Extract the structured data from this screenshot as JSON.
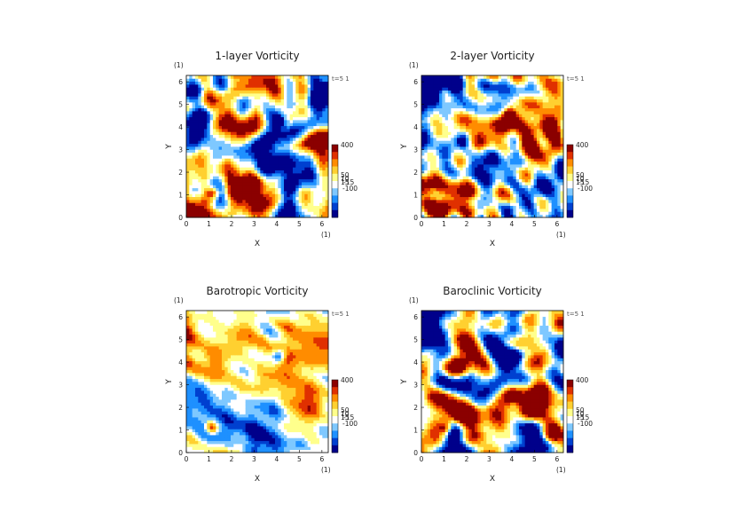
{
  "chart_data": [
    {
      "type": "heatmap",
      "title": "1-layer Vorticity",
      "xlabel": "X",
      "ylabel": "Y",
      "x_unit": "(1)",
      "y_unit": "(1)",
      "time_label": "t=5 1",
      "xlim": [
        0,
        6.28
      ],
      "ylim": [
        0,
        6.28
      ],
      "xticks": [
        "0",
        "1",
        "2",
        "3",
        "4",
        "5",
        "6"
      ],
      "yticks": [
        "0",
        "1",
        "2",
        "3",
        "4",
        "5",
        "6"
      ],
      "colorbar_labels": [
        "400",
        "50",
        "10",
        "15",
        "-15",
        "-100"
      ],
      "features": [
        {
          "kind": "vortex",
          "x": 1.2,
          "y": 1.1,
          "sign": "positive"
        },
        {
          "kind": "vortex",
          "x": 4.1,
          "y": 4.3,
          "sign": "negative"
        }
      ]
    },
    {
      "type": "heatmap",
      "title": "2-layer Vorticity",
      "xlabel": "X",
      "ylabel": "Y",
      "x_unit": "(1)",
      "y_unit": "(1)",
      "time_label": "t=5 1",
      "xlim": [
        0,
        6.28
      ],
      "ylim": [
        0,
        6.28
      ],
      "xticks": [
        "0",
        "1",
        "2",
        "3",
        "4",
        "5",
        "6"
      ],
      "yticks": [
        "0",
        "1",
        "2",
        "3",
        "4",
        "5",
        "6"
      ],
      "colorbar_labels": [
        "400",
        "50",
        "10",
        "15",
        "-15",
        "-100"
      ],
      "features": [
        {
          "kind": "vortex",
          "x": 3.9,
          "y": 4.6,
          "sign": "positive"
        },
        {
          "kind": "vortex",
          "x": 1.8,
          "y": 3.4,
          "sign": "negative"
        }
      ]
    },
    {
      "type": "heatmap",
      "title": "Barotropic Vorticity",
      "xlabel": "X",
      "ylabel": "Y",
      "x_unit": "(1)",
      "y_unit": "(1)",
      "time_label": "t=5 1",
      "xlim": [
        0,
        6.28
      ],
      "ylim": [
        0,
        6.28
      ],
      "xticks": [
        "0",
        "1",
        "2",
        "3",
        "4",
        "5",
        "6"
      ],
      "yticks": [
        "0",
        "1",
        "2",
        "3",
        "4",
        "5",
        "6"
      ],
      "colorbar_labels": [
        "400",
        "50",
        "10",
        "15",
        "-15",
        "-100"
      ],
      "features": [
        {
          "kind": "vortex",
          "x": 1.1,
          "y": 1.1,
          "sign": "positive"
        },
        {
          "kind": "vortex",
          "x": 4.1,
          "y": 4.3,
          "sign": "negative"
        }
      ]
    },
    {
      "type": "heatmap",
      "title": "Baroclinic Vorticity",
      "xlabel": "X",
      "ylabel": "Y",
      "x_unit": "(1)",
      "y_unit": "(1)",
      "time_label": "t=5 1",
      "xlim": [
        0,
        6.28
      ],
      "ylim": [
        0,
        6.28
      ],
      "xticks": [
        "0",
        "1",
        "2",
        "3",
        "4",
        "5",
        "6"
      ],
      "yticks": [
        "0",
        "1",
        "2",
        "3",
        "4",
        "5",
        "6"
      ],
      "colorbar_labels": [
        "400",
        "50",
        "10",
        "15",
        "-15",
        "-100"
      ],
      "features": [
        {
          "kind": "vortex",
          "x": 1.1,
          "y": 1.1,
          "sign": "positive"
        },
        {
          "kind": "vortex",
          "x": 4.1,
          "y": 4.3,
          "sign": "negative"
        }
      ]
    }
  ],
  "colorscale": [
    "#00008b",
    "#0040d0",
    "#1e90ff",
    "#7ec8ff",
    "#ffffff",
    "#ffff8c",
    "#ffd030",
    "#ff8c00",
    "#e03000",
    "#8b0000"
  ]
}
